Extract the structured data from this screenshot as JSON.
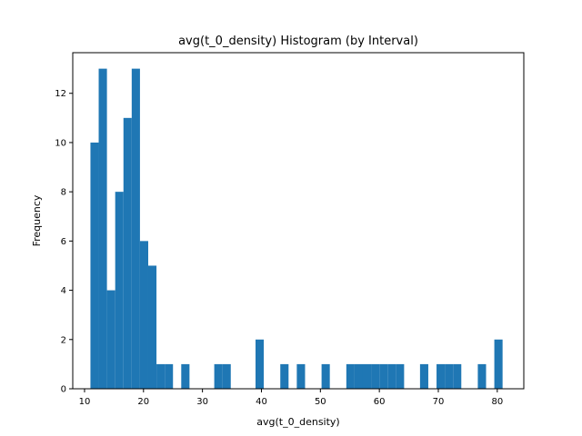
{
  "chart_data": {
    "type": "bar",
    "title": "avg(t_0_density) Histogram (by Interval)",
    "xlabel": "avg(t_0_density)",
    "ylabel": "Frequency",
    "xlim": [
      8,
      84.5
    ],
    "ylim": [
      0,
      13.65
    ],
    "xticks": [
      10,
      20,
      30,
      40,
      50,
      60,
      70,
      80
    ],
    "yticks": [
      0,
      2,
      4,
      6,
      8,
      10,
      12
    ],
    "bar_color": "#1f77b4",
    "grid": false,
    "legend": "none",
    "bins": [
      {
        "x0": 11.0,
        "x1": 12.4,
        "value": 10
      },
      {
        "x0": 12.4,
        "x1": 13.8,
        "value": 13
      },
      {
        "x0": 13.8,
        "x1": 15.2,
        "value": 4
      },
      {
        "x0": 15.2,
        "x1": 16.6,
        "value": 8
      },
      {
        "x0": 16.6,
        "x1": 18.0,
        "value": 11
      },
      {
        "x0": 18.0,
        "x1": 19.4,
        "value": 13
      },
      {
        "x0": 19.4,
        "x1": 20.8,
        "value": 6
      },
      {
        "x0": 20.8,
        "x1": 22.2,
        "value": 5
      },
      {
        "x0": 22.2,
        "x1": 23.6,
        "value": 1
      },
      {
        "x0": 23.6,
        "x1": 25.0,
        "value": 1
      },
      {
        "x0": 26.4,
        "x1": 27.8,
        "value": 1
      },
      {
        "x0": 32.0,
        "x1": 33.4,
        "value": 1
      },
      {
        "x0": 33.4,
        "x1": 34.8,
        "value": 1
      },
      {
        "x0": 39.0,
        "x1": 40.4,
        "value": 2
      },
      {
        "x0": 43.2,
        "x1": 44.6,
        "value": 1
      },
      {
        "x0": 46.0,
        "x1": 47.4,
        "value": 1
      },
      {
        "x0": 50.2,
        "x1": 51.6,
        "value": 1
      },
      {
        "x0": 54.4,
        "x1": 55.8,
        "value": 1
      },
      {
        "x0": 55.8,
        "x1": 57.2,
        "value": 1
      },
      {
        "x0": 57.2,
        "x1": 58.6,
        "value": 1
      },
      {
        "x0": 58.6,
        "x1": 60.0,
        "value": 1
      },
      {
        "x0": 60.0,
        "x1": 61.4,
        "value": 1
      },
      {
        "x0": 61.4,
        "x1": 62.8,
        "value": 1
      },
      {
        "x0": 62.8,
        "x1": 64.2,
        "value": 1
      },
      {
        "x0": 66.9,
        "x1": 68.3,
        "value": 1
      },
      {
        "x0": 69.7,
        "x1": 71.1,
        "value": 1
      },
      {
        "x0": 71.1,
        "x1": 72.5,
        "value": 1
      },
      {
        "x0": 72.5,
        "x1": 73.9,
        "value": 1
      },
      {
        "x0": 76.7,
        "x1": 78.1,
        "value": 1
      },
      {
        "x0": 79.5,
        "x1": 80.9,
        "value": 2
      }
    ]
  }
}
